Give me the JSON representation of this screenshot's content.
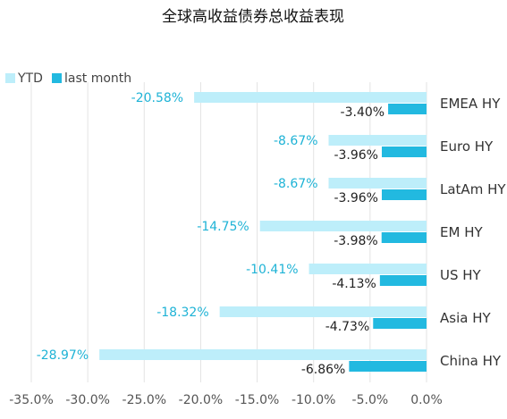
{
  "chart_data": {
    "type": "bar",
    "orientation": "horizontal",
    "title": "全球高收益债券总收益表现",
    "categories": [
      "EMEA HY",
      "Euro HY",
      "LatAm HY",
      "EM HY",
      "US HY",
      "Asia HY",
      "China HY"
    ],
    "series": [
      {
        "name": "YTD",
        "color": "#bdeefa",
        "values": [
          -20.58,
          -8.67,
          -8.67,
          -14.75,
          -10.41,
          -18.32,
          -28.97
        ],
        "labels": [
          "-20.58%",
          "-8.67%",
          "-8.67%",
          "-14.75%",
          "-10.41%",
          "-18.32%",
          "-28.97%"
        ]
      },
      {
        "name": "last month",
        "color": "#22b9e0",
        "values": [
          -3.4,
          -3.96,
          -3.96,
          -3.98,
          -4.13,
          -4.73,
          -6.86
        ],
        "labels": [
          "-3.40%",
          "-3.96%",
          "-3.96%",
          "-3.98%",
          "-4.13%",
          "-4.73%",
          "-6.86%"
        ]
      }
    ],
    "xlim": [
      -35,
      0
    ],
    "x_ticks": [
      "-35.0%",
      "-30.0%",
      "-25.0%",
      "-20.0%",
      "-15.0%",
      "-10.0%",
      "-5.0%",
      "0.0%"
    ],
    "x_tick_values": [
      -35,
      -30,
      -25,
      -20,
      -15,
      -10,
      -5,
      0
    ],
    "grid": true,
    "legend_position": "top-left"
  }
}
